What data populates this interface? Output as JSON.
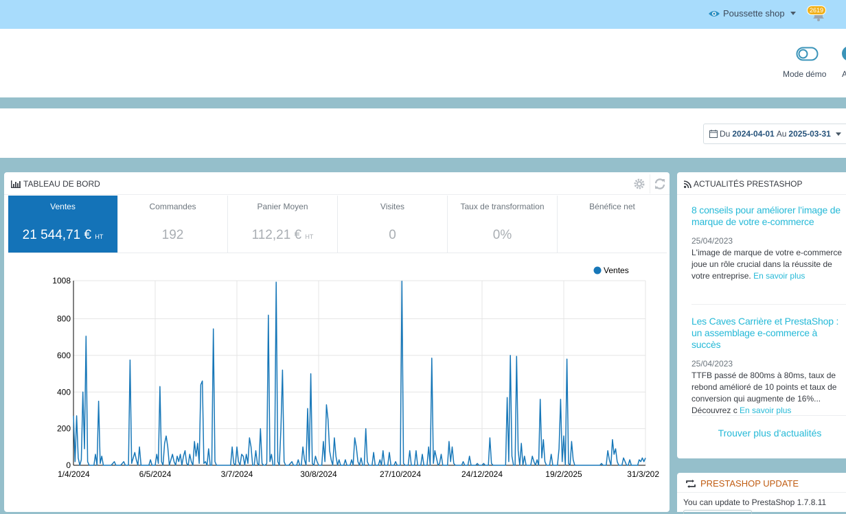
{
  "topbar": {
    "shop_name": "Poussette shop",
    "notification_count": "2619"
  },
  "header": {
    "demo_mode_label": "Mode démo",
    "partial_label": "A"
  },
  "daterange": {
    "from_label": "Du",
    "from": "2024-04-01",
    "to_label": "Au",
    "to": "2025-03-31"
  },
  "dashboard": {
    "title": "TABLEAU DE BORD",
    "kpis": [
      {
        "label": "Ventes",
        "value": "21 544,71 €",
        "suffix": "HT",
        "active": true
      },
      {
        "label": "Commandes",
        "value": "192",
        "suffix": ""
      },
      {
        "label": "Panier Moyen",
        "value": "112,21 €",
        "suffix": "HT"
      },
      {
        "label": "Visites",
        "value": "0",
        "suffix": ""
      },
      {
        "label": "Taux de transformation",
        "value": "0%",
        "suffix": ""
      },
      {
        "label": "Bénéfice net",
        "value": "",
        "suffix": ""
      }
    ]
  },
  "chart_data": {
    "type": "line",
    "legend": "top-right",
    "grid": true,
    "series": [
      {
        "name": "Ventes",
        "color": "#1777b8"
      }
    ],
    "y_ticks": [
      "1008",
      "800",
      "600",
      "400",
      "200",
      "0"
    ],
    "ylim": [
      0,
      1008
    ],
    "x_ticks": [
      "1/4/2024",
      "6/5/2024",
      "3/7/2024",
      "30/8/2024",
      "27/10/2024",
      "24/12/2024",
      "19/2/2025",
      "31/3/202"
    ],
    "x_start": "2024-04-01",
    "x_end": "2025-03-31",
    "points": [
      [
        "2024-04-01",
        270
      ],
      [
        "2024-04-02",
        20
      ],
      [
        "2024-04-03",
        270
      ],
      [
        "2024-04-04",
        40
      ],
      [
        "2024-04-05",
        0
      ],
      [
        "2024-04-06",
        30
      ],
      [
        "2024-04-07",
        400
      ],
      [
        "2024-04-08",
        90
      ],
      [
        "2024-04-09",
        705
      ],
      [
        "2024-04-10",
        20
      ],
      [
        "2024-04-11",
        0
      ],
      [
        "2024-04-12",
        0
      ],
      [
        "2024-04-14",
        0
      ],
      [
        "2024-04-15",
        60
      ],
      [
        "2024-04-16",
        0
      ],
      [
        "2024-04-17",
        350
      ],
      [
        "2024-04-18",
        10
      ],
      [
        "2024-04-19",
        50
      ],
      [
        "2024-04-20",
        0
      ],
      [
        "2024-04-25",
        0
      ],
      [
        "2024-04-27",
        20
      ],
      [
        "2024-04-28",
        0
      ],
      [
        "2024-05-01",
        0
      ],
      [
        "2024-05-03",
        20
      ],
      [
        "2024-05-04",
        0
      ],
      [
        "2024-05-06",
        0
      ],
      [
        "2024-05-07",
        575
      ],
      [
        "2024-05-08",
        10
      ],
      [
        "2024-05-10",
        70
      ],
      [
        "2024-05-11",
        30
      ],
      [
        "2024-05-12",
        0
      ],
      [
        "2024-05-13",
        100
      ],
      [
        "2024-05-14",
        0
      ],
      [
        "2024-05-16",
        0
      ],
      [
        "2024-05-19",
        0
      ],
      [
        "2024-05-20",
        30
      ],
      [
        "2024-05-21",
        0
      ],
      [
        "2024-05-23",
        0
      ],
      [
        "2024-05-24",
        60
      ],
      [
        "2024-05-25",
        10
      ],
      [
        "2024-05-26",
        430
      ],
      [
        "2024-05-27",
        20
      ],
      [
        "2024-05-28",
        0
      ],
      [
        "2024-05-29",
        120
      ],
      [
        "2024-05-30",
        160
      ],
      [
        "2024-05-31",
        100
      ],
      [
        "2024-06-01",
        0
      ],
      [
        "2024-06-03",
        60
      ],
      [
        "2024-06-04",
        20
      ],
      [
        "2024-06-05",
        0
      ],
      [
        "2024-06-06",
        50
      ],
      [
        "2024-06-07",
        20
      ],
      [
        "2024-06-08",
        60
      ],
      [
        "2024-06-09",
        0
      ],
      [
        "2024-06-10",
        50
      ],
      [
        "2024-06-11",
        80
      ],
      [
        "2024-06-12",
        10
      ],
      [
        "2024-06-13",
        0
      ],
      [
        "2024-06-14",
        60
      ],
      [
        "2024-06-15",
        20
      ],
      [
        "2024-06-16",
        0
      ],
      [
        "2024-06-17",
        130
      ],
      [
        "2024-06-18",
        50
      ],
      [
        "2024-06-19",
        120
      ],
      [
        "2024-06-20",
        10
      ],
      [
        "2024-06-21",
        440
      ],
      [
        "2024-06-22",
        460
      ],
      [
        "2024-06-23",
        10
      ],
      [
        "2024-06-24",
        20
      ],
      [
        "2024-06-25",
        0
      ],
      [
        "2024-06-26",
        90
      ],
      [
        "2024-06-27",
        0
      ],
      [
        "2024-06-28",
        0
      ],
      [
        "2024-06-29",
        745
      ],
      [
        "2024-06-30",
        20
      ],
      [
        "2024-07-01",
        0
      ],
      [
        "2024-07-02",
        0
      ],
      [
        "2024-07-03",
        0
      ],
      [
        "2024-07-06",
        0
      ],
      [
        "2024-07-08",
        0
      ],
      [
        "2024-07-10",
        0
      ],
      [
        "2024-07-11",
        100
      ],
      [
        "2024-07-12",
        10
      ],
      [
        "2024-07-13",
        0
      ],
      [
        "2024-07-14",
        100
      ],
      [
        "2024-07-15",
        20
      ],
      [
        "2024-07-16",
        0
      ],
      [
        "2024-07-17",
        60
      ],
      [
        "2024-07-18",
        50
      ],
      [
        "2024-07-19",
        0
      ],
      [
        "2024-07-20",
        60
      ],
      [
        "2024-07-21",
        10
      ],
      [
        "2024-07-22",
        150
      ],
      [
        "2024-07-23",
        100
      ],
      [
        "2024-07-24",
        0
      ],
      [
        "2024-07-25",
        0
      ],
      [
        "2024-07-26",
        80
      ],
      [
        "2024-07-27",
        10
      ],
      [
        "2024-07-28",
        0
      ],
      [
        "2024-07-29",
        200
      ],
      [
        "2024-07-30",
        10
      ],
      [
        "2024-07-31",
        0
      ],
      [
        "2024-08-01",
        0
      ],
      [
        "2024-08-02",
        10
      ],
      [
        "2024-08-03",
        820
      ],
      [
        "2024-08-04",
        20
      ],
      [
        "2024-08-05",
        60
      ],
      [
        "2024-08-06",
        0
      ],
      [
        "2024-08-07",
        0
      ],
      [
        "2024-08-08",
        1000
      ],
      [
        "2024-08-09",
        20
      ],
      [
        "2024-08-10",
        0
      ],
      [
        "2024-08-11",
        200
      ],
      [
        "2024-08-12",
        520
      ],
      [
        "2024-08-13",
        20
      ],
      [
        "2024-08-14",
        0
      ],
      [
        "2024-08-16",
        0
      ],
      [
        "2024-08-18",
        20
      ],
      [
        "2024-08-19",
        0
      ],
      [
        "2024-08-21",
        0
      ],
      [
        "2024-08-22",
        30
      ],
      [
        "2024-08-23",
        0
      ],
      [
        "2024-08-24",
        0
      ],
      [
        "2024-08-25",
        100
      ],
      [
        "2024-08-26",
        30
      ],
      [
        "2024-08-27",
        0
      ],
      [
        "2024-08-28",
        310
      ],
      [
        "2024-08-29",
        20
      ],
      [
        "2024-08-30",
        500
      ],
      [
        "2024-08-31",
        10
      ],
      [
        "2024-09-01",
        0
      ],
      [
        "2024-09-02",
        50
      ],
      [
        "2024-09-03",
        20
      ],
      [
        "2024-09-04",
        0
      ],
      [
        "2024-09-06",
        0
      ],
      [
        "2024-09-07",
        130
      ],
      [
        "2024-09-08",
        20
      ],
      [
        "2024-09-09",
        330
      ],
      [
        "2024-09-10",
        250
      ],
      [
        "2024-09-11",
        80
      ],
      [
        "2024-09-12",
        30
      ],
      [
        "2024-09-13",
        0
      ],
      [
        "2024-09-14",
        150
      ],
      [
        "2024-09-15",
        50
      ],
      [
        "2024-09-16",
        0
      ],
      [
        "2024-09-17",
        30
      ],
      [
        "2024-09-18",
        0
      ],
      [
        "2024-09-20",
        0
      ],
      [
        "2024-09-21",
        30
      ],
      [
        "2024-09-22",
        0
      ],
      [
        "2024-09-24",
        0
      ],
      [
        "2024-09-25",
        30
      ],
      [
        "2024-09-26",
        0
      ],
      [
        "2024-09-27",
        150
      ],
      [
        "2024-09-28",
        100
      ],
      [
        "2024-09-29",
        20
      ],
      [
        "2024-09-30",
        0
      ],
      [
        "2024-10-01",
        40
      ],
      [
        "2024-10-02",
        0
      ],
      [
        "2024-10-03",
        0
      ],
      [
        "2024-10-04",
        200
      ],
      [
        "2024-10-05",
        20
      ],
      [
        "2024-10-06",
        0
      ],
      [
        "2024-10-07",
        0
      ],
      [
        "2024-10-08",
        0
      ],
      [
        "2024-10-09",
        70
      ],
      [
        "2024-10-10",
        0
      ],
      [
        "2024-10-11",
        0
      ],
      [
        "2024-10-12",
        0
      ],
      [
        "2024-10-13",
        30
      ],
      [
        "2024-10-14",
        0
      ],
      [
        "2024-10-15",
        80
      ],
      [
        "2024-10-16",
        0
      ],
      [
        "2024-10-18",
        0
      ],
      [
        "2024-10-19",
        70
      ],
      [
        "2024-10-20",
        0
      ],
      [
        "2024-10-22",
        0
      ],
      [
        "2024-10-23",
        20
      ],
      [
        "2024-10-24",
        0
      ],
      [
        "2024-10-26",
        0
      ],
      [
        "2024-10-27",
        1005
      ],
      [
        "2024-10-28",
        10
      ],
      [
        "2024-10-29",
        0
      ],
      [
        "2024-10-31",
        0
      ],
      [
        "2024-11-01",
        80
      ],
      [
        "2024-11-02",
        0
      ],
      [
        "2024-11-04",
        0
      ],
      [
        "2024-11-05",
        80
      ],
      [
        "2024-11-06",
        0
      ],
      [
        "2024-11-08",
        0
      ],
      [
        "2024-11-09",
        60
      ],
      [
        "2024-11-10",
        0
      ],
      [
        "2024-11-12",
        0
      ],
      [
        "2024-11-13",
        100
      ],
      [
        "2024-11-14",
        0
      ],
      [
        "2024-11-15",
        585
      ],
      [
        "2024-11-16",
        10
      ],
      [
        "2024-11-17",
        80
      ],
      [
        "2024-11-18",
        40
      ],
      [
        "2024-11-19",
        0
      ],
      [
        "2024-11-20",
        10
      ],
      [
        "2024-11-21",
        60
      ],
      [
        "2024-11-22",
        0
      ],
      [
        "2024-11-24",
        0
      ],
      [
        "2024-11-25",
        0
      ],
      [
        "2024-11-26",
        130
      ],
      [
        "2024-11-27",
        20
      ],
      [
        "2024-11-28",
        100
      ],
      [
        "2024-11-29",
        10
      ],
      [
        "2024-11-30",
        0
      ],
      [
        "2024-12-02",
        0
      ],
      [
        "2024-12-04",
        0
      ],
      [
        "2024-12-05",
        20
      ],
      [
        "2024-12-06",
        0
      ],
      [
        "2024-12-08",
        0
      ],
      [
        "2024-12-09",
        50
      ],
      [
        "2024-12-10",
        0
      ],
      [
        "2024-12-11",
        0
      ],
      [
        "2024-12-12",
        0
      ],
      [
        "2024-12-13",
        0
      ],
      [
        "2024-12-14",
        10
      ],
      [
        "2024-12-15",
        0
      ],
      [
        "2024-12-16",
        0
      ],
      [
        "2024-12-17",
        0
      ],
      [
        "2024-12-18",
        10
      ],
      [
        "2024-12-19",
        0
      ],
      [
        "2024-12-21",
        0
      ],
      [
        "2024-12-22",
        150
      ],
      [
        "2024-12-23",
        10
      ],
      [
        "2024-12-24",
        0
      ],
      [
        "2024-12-25",
        0
      ],
      [
        "2024-12-27",
        0
      ],
      [
        "2024-12-28",
        0
      ],
      [
        "2024-12-30",
        0
      ],
      [
        "2025-01-01",
        0
      ],
      [
        "2025-01-02",
        370
      ],
      [
        "2025-01-03",
        20
      ],
      [
        "2025-01-04",
        600
      ],
      [
        "2025-01-05",
        50
      ],
      [
        "2025-01-06",
        0
      ],
      [
        "2025-01-07",
        0
      ],
      [
        "2025-01-08",
        595
      ],
      [
        "2025-01-09",
        80
      ],
      [
        "2025-01-10",
        0
      ],
      [
        "2025-01-11",
        120
      ],
      [
        "2025-01-12",
        0
      ],
      [
        "2025-01-13",
        50
      ],
      [
        "2025-01-14",
        0
      ],
      [
        "2025-01-16",
        0
      ],
      [
        "2025-01-17",
        0
      ],
      [
        "2025-01-18",
        50
      ],
      [
        "2025-01-19",
        20
      ],
      [
        "2025-01-20",
        0
      ],
      [
        "2025-01-21",
        30
      ],
      [
        "2025-01-22",
        0
      ],
      [
        "2025-01-23",
        360
      ],
      [
        "2025-01-24",
        40
      ],
      [
        "2025-01-25",
        140
      ],
      [
        "2025-01-26",
        20
      ],
      [
        "2025-01-27",
        0
      ],
      [
        "2025-01-29",
        0
      ],
      [
        "2025-01-30",
        60
      ],
      [
        "2025-01-31",
        0
      ],
      [
        "2025-02-01",
        0
      ],
      [
        "2025-02-03",
        0
      ],
      [
        "2025-02-04",
        90
      ],
      [
        "2025-02-05",
        360
      ],
      [
        "2025-02-06",
        20
      ],
      [
        "2025-02-07",
        160
      ],
      [
        "2025-02-08",
        0
      ],
      [
        "2025-02-09",
        580
      ],
      [
        "2025-02-10",
        10
      ],
      [
        "2025-02-11",
        0
      ],
      [
        "2025-02-12",
        130
      ],
      [
        "2025-02-13",
        30
      ],
      [
        "2025-02-14",
        0
      ],
      [
        "2025-02-16",
        0
      ],
      [
        "2025-02-18",
        0
      ],
      [
        "2025-02-20",
        0
      ],
      [
        "2025-02-22",
        0
      ],
      [
        "2025-02-24",
        0
      ],
      [
        "2025-02-26",
        0
      ],
      [
        "2025-02-28",
        0
      ],
      [
        "2025-03-02",
        0
      ],
      [
        "2025-03-03",
        10
      ],
      [
        "2025-03-04",
        0
      ],
      [
        "2025-03-06",
        0
      ],
      [
        "2025-03-07",
        80
      ],
      [
        "2025-03-08",
        30
      ],
      [
        "2025-03-09",
        0
      ],
      [
        "2025-03-10",
        140
      ],
      [
        "2025-03-11",
        60
      ],
      [
        "2025-03-12",
        90
      ],
      [
        "2025-03-13",
        20
      ],
      [
        "2025-03-14",
        0
      ],
      [
        "2025-03-16",
        0
      ],
      [
        "2025-03-17",
        40
      ],
      [
        "2025-03-18",
        20
      ],
      [
        "2025-03-19",
        0
      ],
      [
        "2025-03-20",
        0
      ],
      [
        "2025-03-21",
        30
      ],
      [
        "2025-03-22",
        0
      ],
      [
        "2025-03-24",
        0
      ],
      [
        "2025-03-26",
        0
      ],
      [
        "2025-03-27",
        30
      ],
      [
        "2025-03-28",
        20
      ],
      [
        "2025-03-29",
        40
      ],
      [
        "2025-03-30",
        20
      ],
      [
        "2025-03-31",
        40
      ]
    ]
  },
  "news": {
    "title": "ACTUALITÉS PRESTASHOP",
    "items": [
      {
        "title": "8 conseils pour améliorer l’image de marque de votre e-commerce",
        "date": "25/04/2023",
        "text": "L'image de marque de votre e-commerce joue un rôle crucial dans la réussite de votre entreprise.",
        "more": "En savoir plus"
      },
      {
        "title": "Les Caves Carrière et PrestaShop : un assemblage e-commerce à succès",
        "date": "25/04/2023",
        "text": "TTFB  passé de 800ms à 80ms, taux de rebond amélioré de 10 points et taux de conversion qui augmente de 16%... Découvrez c",
        "more": "En savoir plus"
      }
    ],
    "more_link": "Trouver plus d'actualités"
  },
  "update": {
    "title": "PRESTASHOP UPDATE",
    "text": "You can update to PrestaShop 1.7.8.11"
  },
  "colors": {
    "topbar": "#a8dcfc",
    "accent": "#25b9d7",
    "kpi_active": "#1473b8",
    "series": "#1777b8"
  }
}
